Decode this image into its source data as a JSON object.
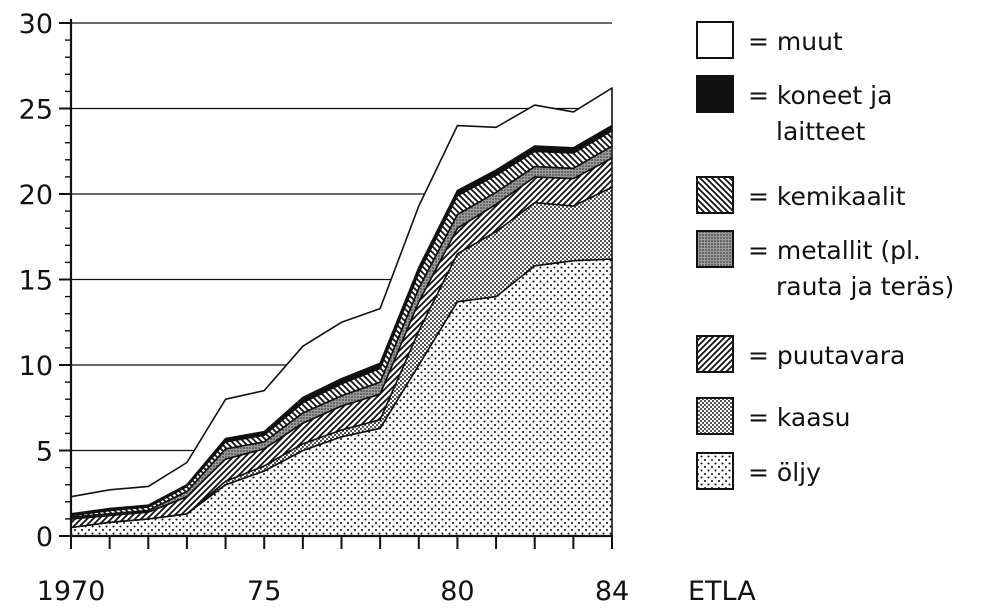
{
  "chart_data": {
    "type": "area",
    "stacked": true,
    "x": [
      1970,
      1971,
      1972,
      1973,
      1974,
      1975,
      1976,
      1977,
      1978,
      1979,
      1980,
      1981,
      1982,
      1983,
      1984
    ],
    "x_tick_labels": [
      {
        "x": 1970,
        "label": "1970"
      },
      {
        "x": 1975,
        "label": "75"
      },
      {
        "x": 1980,
        "label": "80"
      },
      {
        "x": 1984,
        "label": "84"
      }
    ],
    "y_tick_labels": [
      "0",
      "5",
      "10",
      "15",
      "20",
      "25",
      "30"
    ],
    "ylim": [
      0,
      30
    ],
    "grid": "horizontal",
    "legend_position": "right",
    "series": [
      {
        "name": "öljy",
        "pattern": "fine-dots",
        "values": [
          0.5,
          0.8,
          1.0,
          1.3,
          3.0,
          3.8,
          5.0,
          5.8,
          6.3,
          10.0,
          13.7,
          14.0,
          15.8,
          16.1,
          16.2
        ]
      },
      {
        "name": "kaasu",
        "pattern": "dense-dots",
        "values": [
          0.0,
          0.0,
          0.0,
          0.0,
          0.2,
          0.3,
          0.4,
          0.4,
          0.5,
          2.0,
          2.8,
          3.8,
          3.7,
          3.2,
          4.2
        ]
      },
      {
        "name": "puutavara",
        "pattern": "diagonal-right",
        "values": [
          0.5,
          0.4,
          0.4,
          1.0,
          1.3,
          1.0,
          1.2,
          1.4,
          1.5,
          1.7,
          1.5,
          1.6,
          1.5,
          1.6,
          1.7
        ]
      },
      {
        "name": "metallit (pl. rauta ja teräs)",
        "pattern": "grey-stipple",
        "values": [
          0.1,
          0.1,
          0.1,
          0.3,
          0.6,
          0.4,
          0.6,
          0.6,
          0.7,
          0.8,
          0.8,
          0.7,
          0.6,
          0.6,
          0.7
        ]
      },
      {
        "name": "kemikaalit",
        "pattern": "diagonal-left",
        "values": [
          0.1,
          0.2,
          0.2,
          0.3,
          0.4,
          0.4,
          0.6,
          0.7,
          0.8,
          0.9,
          1.1,
          1.0,
          0.9,
          0.9,
          0.9
        ]
      },
      {
        "name": "koneet ja laitteet",
        "pattern": "solid-black",
        "values": [
          0.1,
          0.1,
          0.1,
          0.1,
          0.2,
          0.2,
          0.3,
          0.3,
          0.3,
          0.3,
          0.3,
          0.3,
          0.3,
          0.3,
          0.3
        ]
      },
      {
        "name": "muut",
        "pattern": "white",
        "values": [
          1.0,
          1.1,
          1.1,
          1.3,
          2.3,
          2.4,
          3.0,
          3.3,
          3.2,
          3.6,
          3.8,
          2.5,
          2.4,
          2.1,
          2.2
        ]
      }
    ],
    "legend": [
      {
        "pattern": "white",
        "lines": [
          "= muut"
        ]
      },
      {
        "pattern": "solid-black",
        "lines": [
          "= koneet ja",
          "laitteet"
        ]
      },
      {
        "pattern": "diagonal-left",
        "lines": [
          "= kemikaalit"
        ]
      },
      {
        "pattern": "grey-stipple",
        "lines": [
          "= metallit (pl.",
          "rauta ja teräs)"
        ]
      },
      {
        "pattern": "diagonal-right",
        "lines": [
          "= puutavara"
        ]
      },
      {
        "pattern": "dense-dots",
        "lines": [
          "= kaasu"
        ]
      },
      {
        "pattern": "fine-dots",
        "lines": [
          "= öljy"
        ]
      }
    ],
    "source": "ETLA"
  },
  "colors": {
    "ink": "#111111",
    "background": "#ffffff",
    "stipple_grey": "#9a9a9a"
  }
}
